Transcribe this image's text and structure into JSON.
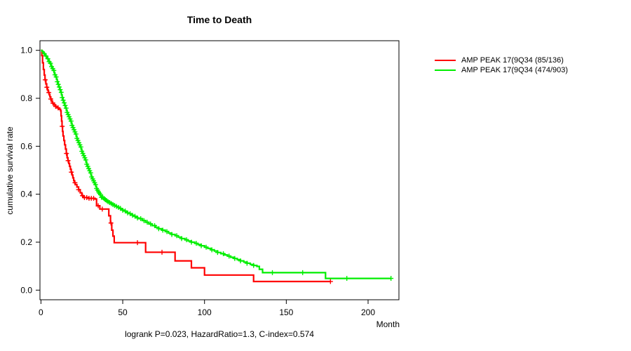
{
  "title": "Time to Death",
  "ylabel": "cumulative survival rate",
  "xlabel": "Month",
  "footer": "logrank P=0.023, HazardRatio=1.3, C-index=0.574",
  "legend": [
    {
      "label": "AMP PEAK 17(9Q34 (85/136)",
      "color": "#ff0000"
    },
    {
      "label": "AMP PEAK 17(9Q34 (474/903)",
      "color": "#00ee00"
    }
  ],
  "colors": {
    "axis": "#000000",
    "background": "#ffffff",
    "red_series": "#ff0000",
    "green_series": "#00ee00"
  },
  "chart_data": {
    "type": "line",
    "subtype": "kaplan-meier-step",
    "title": "Time to Death",
    "xlabel": "Month",
    "ylabel": "cumulative survival rate",
    "xlim": [
      0,
      220
    ],
    "ylim": [
      0.0,
      1.0
    ],
    "grid": false,
    "legend_position": "right-outside",
    "xticks": [
      {
        "v": 0,
        "label": "0"
      },
      {
        "v": 50,
        "label": "50"
      },
      {
        "v": 100,
        "label": "100"
      },
      {
        "v": 150,
        "label": "150"
      },
      {
        "v": 200,
        "label": "200"
      }
    ],
    "yticks": [
      {
        "v": 0.0,
        "label": "0.0"
      },
      {
        "v": 0.2,
        "label": "0.2"
      },
      {
        "v": 0.4,
        "label": "0.4"
      },
      {
        "v": 0.6,
        "label": "0.6"
      },
      {
        "v": 0.8,
        "label": "0.8"
      },
      {
        "v": 1.0,
        "label": "1.0"
      }
    ],
    "annotation": "logrank P=0.023, HazardRatio=1.3, C-index=0.574",
    "series": [
      {
        "name": "AMP PEAK 17(9Q34 (85/136)",
        "color": "#ff0000",
        "end_month": 177,
        "steps": [
          [
            0,
            1.0
          ],
          [
            0.5,
            0.978
          ],
          [
            1,
            0.948
          ],
          [
            1.5,
            0.92
          ],
          [
            2,
            0.897
          ],
          [
            2.5,
            0.877
          ],
          [
            3,
            0.86
          ],
          [
            3.5,
            0.846
          ],
          [
            4,
            0.834
          ],
          [
            4.5,
            0.824
          ],
          [
            5,
            0.815
          ],
          [
            5.5,
            0.806
          ],
          [
            6,
            0.797
          ],
          [
            6.5,
            0.788
          ],
          [
            7,
            0.78
          ],
          [
            8,
            0.772
          ],
          [
            9,
            0.766
          ],
          [
            10,
            0.76
          ],
          [
            11,
            0.754
          ],
          [
            12,
            0.748
          ],
          [
            12.3,
            0.727
          ],
          [
            12.6,
            0.705
          ],
          [
            12.9,
            0.683
          ],
          [
            13.2,
            0.662
          ],
          [
            13.5,
            0.643
          ],
          [
            14,
            0.624
          ],
          [
            14.5,
            0.606
          ],
          [
            15,
            0.588
          ],
          [
            15.5,
            0.57
          ],
          [
            16,
            0.552
          ],
          [
            16.5,
            0.54
          ],
          [
            17,
            0.528
          ],
          [
            17.5,
            0.516
          ],
          [
            18,
            0.504
          ],
          [
            18.5,
            0.492
          ],
          [
            19,
            0.48
          ],
          [
            19.5,
            0.468
          ],
          [
            20,
            0.457
          ],
          [
            20.5,
            0.448
          ],
          [
            21,
            0.44
          ],
          [
            22,
            0.43
          ],
          [
            23,
            0.419
          ],
          [
            24,
            0.406
          ],
          [
            25,
            0.394
          ],
          [
            26,
            0.386
          ],
          [
            29,
            0.383
          ],
          [
            33,
            0.38
          ],
          [
            34,
            0.352
          ],
          [
            36,
            0.338
          ],
          [
            41.5,
            0.31
          ],
          [
            42.5,
            0.28
          ],
          [
            43.3,
            0.25
          ],
          [
            44,
            0.225
          ],
          [
            44.8,
            0.198
          ],
          [
            64,
            0.158
          ],
          [
            82,
            0.122
          ],
          [
            92,
            0.093
          ],
          [
            100,
            0.063
          ],
          [
            130,
            0.036
          ]
        ],
        "censor_months": [
          2.6,
          3.6,
          4.8,
          6.0,
          7.3,
          9.0,
          10.5,
          13.0,
          15.6,
          16.6,
          18.6,
          20.8,
          23.0,
          25.4,
          26.6,
          28.0,
          29.4,
          30.8,
          32.2,
          35.0,
          37.5,
          42.8,
          59.0,
          74.0,
          177.0
        ]
      },
      {
        "name": "AMP PEAK 17(9Q34 (474/903)",
        "color": "#00ee00",
        "end_month": 214,
        "steps": [
          [
            0,
            1.0
          ],
          [
            0.5,
            0.997
          ],
          [
            1,
            0.994
          ],
          [
            1.5,
            0.99
          ],
          [
            2,
            0.986
          ],
          [
            2.5,
            0.981
          ],
          [
            3,
            0.976
          ],
          [
            3.5,
            0.971
          ],
          [
            4,
            0.965
          ],
          [
            4.5,
            0.959
          ],
          [
            5,
            0.953
          ],
          [
            5.5,
            0.946
          ],
          [
            6,
            0.939
          ],
          [
            6.5,
            0.932
          ],
          [
            7,
            0.924
          ],
          [
            7.5,
            0.916
          ],
          [
            8,
            0.907
          ],
          [
            8.5,
            0.898
          ],
          [
            9,
            0.889
          ],
          [
            9.5,
            0.879
          ],
          [
            10,
            0.869
          ],
          [
            10.5,
            0.858
          ],
          [
            11,
            0.847
          ],
          [
            11.5,
            0.836
          ],
          [
            12,
            0.825
          ],
          [
            12.5,
            0.814
          ],
          [
            13,
            0.803
          ],
          [
            13.5,
            0.792
          ],
          [
            14,
            0.781
          ],
          [
            14.5,
            0.77
          ],
          [
            15,
            0.759
          ],
          [
            15.5,
            0.75
          ],
          [
            16,
            0.741
          ],
          [
            16.5,
            0.732
          ],
          [
            17,
            0.723
          ],
          [
            17.5,
            0.714
          ],
          [
            18,
            0.705
          ],
          [
            18.5,
            0.696
          ],
          [
            19,
            0.687
          ],
          [
            19.5,
            0.678
          ],
          [
            20,
            0.669
          ],
          [
            20.5,
            0.66
          ],
          [
            21,
            0.651
          ],
          [
            21.5,
            0.642
          ],
          [
            22,
            0.633
          ],
          [
            22.5,
            0.624
          ],
          [
            23,
            0.615
          ],
          [
            23.5,
            0.606
          ],
          [
            24,
            0.597
          ],
          [
            24.5,
            0.588
          ],
          [
            25,
            0.579
          ],
          [
            25.5,
            0.57
          ],
          [
            26,
            0.561
          ],
          [
            26.5,
            0.552
          ],
          [
            27,
            0.543
          ],
          [
            27.5,
            0.534
          ],
          [
            28,
            0.525
          ],
          [
            28.5,
            0.516
          ],
          [
            29,
            0.507
          ],
          [
            29.5,
            0.498
          ],
          [
            30,
            0.489
          ],
          [
            30.5,
            0.48
          ],
          [
            31,
            0.472
          ],
          [
            31.5,
            0.464
          ],
          [
            32,
            0.456
          ],
          [
            32.5,
            0.448
          ],
          [
            33,
            0.44
          ],
          [
            33.5,
            0.432
          ],
          [
            34,
            0.424
          ],
          [
            34.5,
            0.417
          ],
          [
            35,
            0.41
          ],
          [
            35.5,
            0.404
          ],
          [
            36,
            0.398
          ],
          [
            36.5,
            0.392
          ],
          [
            37,
            0.387
          ],
          [
            38,
            0.382
          ],
          [
            39,
            0.377
          ],
          [
            40,
            0.373
          ],
          [
            41,
            0.369
          ],
          [
            42,
            0.365
          ],
          [
            43,
            0.361
          ],
          [
            44,
            0.357
          ],
          [
            45,
            0.353
          ],
          [
            46,
            0.349
          ],
          [
            47,
            0.345
          ],
          [
            48,
            0.341
          ],
          [
            49,
            0.337
          ],
          [
            50,
            0.333
          ],
          [
            51,
            0.33
          ],
          [
            52,
            0.326
          ],
          [
            53,
            0.322
          ],
          [
            54,
            0.319
          ],
          [
            55,
            0.315
          ],
          [
            56,
            0.312
          ],
          [
            57,
            0.308
          ],
          [
            58,
            0.305
          ],
          [
            59,
            0.301
          ],
          [
            60,
            0.298
          ],
          [
            62,
            0.29
          ],
          [
            64,
            0.283
          ],
          [
            66,
            0.276
          ],
          [
            68,
            0.269
          ],
          [
            70,
            0.262
          ],
          [
            72,
            0.256
          ],
          [
            74,
            0.25
          ],
          [
            76,
            0.244
          ],
          [
            78,
            0.238
          ],
          [
            80,
            0.232
          ],
          [
            82,
            0.227
          ],
          [
            84,
            0.221
          ],
          [
            86,
            0.215
          ],
          [
            88,
            0.21
          ],
          [
            90,
            0.205
          ],
          [
            92,
            0.2
          ],
          [
            94,
            0.195
          ],
          [
            96,
            0.19
          ],
          [
            98,
            0.185
          ],
          [
            100,
            0.179
          ],
          [
            102,
            0.174
          ],
          [
            104,
            0.168
          ],
          [
            106,
            0.163
          ],
          [
            108,
            0.157
          ],
          [
            110,
            0.152
          ],
          [
            112,
            0.147
          ],
          [
            114,
            0.142
          ],
          [
            116,
            0.137
          ],
          [
            118,
            0.132
          ],
          [
            120,
            0.127
          ],
          [
            122,
            0.122
          ],
          [
            124,
            0.117
          ],
          [
            126,
            0.112
          ],
          [
            128,
            0.107
          ],
          [
            130,
            0.103
          ],
          [
            132,
            0.099
          ],
          [
            133.5,
            0.087
          ],
          [
            135.5,
            0.073
          ],
          [
            174,
            0.049
          ]
        ],
        "censor_months": [
          2.0,
          3.1,
          4.2,
          5.0,
          5.8,
          6.5,
          7.2,
          7.9,
          8.6,
          9.3,
          10.0,
          10.6,
          11.2,
          11.8,
          12.4,
          13.0,
          13.6,
          14.2,
          14.8,
          15.4,
          16.0,
          16.6,
          17.2,
          17.8,
          18.4,
          19.0,
          19.6,
          20.2,
          20.8,
          21.4,
          22.0,
          22.6,
          23.2,
          23.8,
          24.4,
          25.0,
          25.6,
          26.2,
          26.8,
          27.4,
          28.0,
          28.6,
          29.2,
          29.8,
          30.4,
          31.0,
          31.6,
          32.2,
          32.8,
          33.4,
          34.0,
          34.6,
          35.2,
          35.8,
          36.4,
          37.0,
          37.8,
          38.6,
          39.4,
          40.2,
          41.0,
          42.0,
          43.0,
          44.0,
          45.0,
          46.2,
          47.4,
          48.6,
          50.0,
          51.5,
          53.0,
          54.5,
          56.0,
          57.5,
          59.0,
          61.0,
          63.0,
          65.0,
          67.0,
          69.5,
          72.0,
          74.5,
          77.0,
          80.0,
          83.0,
          86.0,
          89.0,
          92.0,
          95.0,
          98.0,
          101.0,
          104.5,
          108.0,
          111.5,
          115.0,
          118.5,
          122.0,
          126.0,
          130.0,
          141.5,
          160.0,
          187.0,
          214.0
        ]
      }
    ]
  }
}
